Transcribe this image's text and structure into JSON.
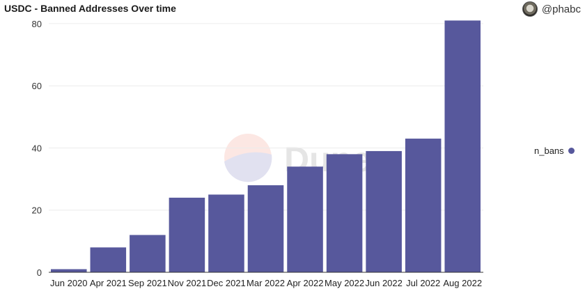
{
  "header": {
    "title": "USDC - Banned Addresses Over time",
    "author": "@phabc"
  },
  "watermark": {
    "text": "Dune"
  },
  "colors": {
    "bar": "#57589c",
    "grid": "#ececec",
    "axis": "#333333"
  },
  "chart_data": {
    "type": "bar",
    "title": "USDC - Banned Addresses Over time",
    "categories": [
      "Jun 2020",
      "Apr 2021",
      "Sep 2021",
      "Nov 2021",
      "Dec 2021",
      "Mar 2022",
      "Apr 2022",
      "May 2022",
      "Jun 2022",
      "Jul 2022",
      "Aug 2022"
    ],
    "series": [
      {
        "name": "n_bans",
        "values": [
          1,
          8,
          12,
          24,
          25,
          28,
          34,
          38,
          39,
          43,
          81
        ]
      }
    ],
    "ylim": [
      0,
      82
    ],
    "yticks": [
      0,
      20,
      40,
      60,
      80
    ],
    "grid": true,
    "legend": "right"
  }
}
